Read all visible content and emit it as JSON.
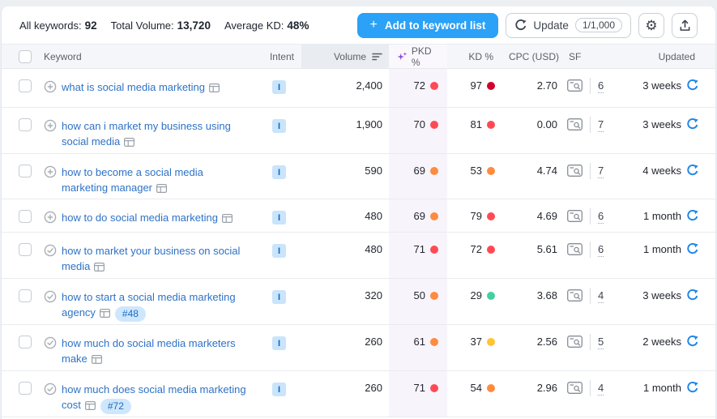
{
  "toolbar": {
    "stats": [
      {
        "label": "All keywords:",
        "value": "92"
      },
      {
        "label": "Total Volume:",
        "value": "13,720"
      },
      {
        "label": "Average KD:",
        "value": "48%"
      }
    ],
    "add_button": {
      "plus": "+",
      "label": "Add to keyword list"
    },
    "update_button": {
      "label": "Update",
      "badge": "1/1,000"
    },
    "icons": {
      "settings": "gear-icon",
      "export": "export-icon"
    }
  },
  "colors": {
    "accent_blue": "#2ba1f7",
    "link_blue": "#2e72c6",
    "refresh_blue": "#1f87e6",
    "sparkle_purple": "#8b4be0",
    "red": "#ff4a53",
    "dark_red": "#d1002f",
    "orange": "#ff8b3e",
    "yellow": "#ffc531",
    "green": "#43d0a1"
  },
  "table": {
    "columns": [
      "Keyword",
      "Intent",
      "Volume",
      "PKD %",
      "KD %",
      "CPC (USD)",
      "SF",
      "Updated"
    ],
    "rows": [
      {
        "keyword": "what is social media marketing",
        "added": false,
        "rank_badge": null,
        "intent": "I",
        "volume": "2,400",
        "pkd": {
          "value": "72",
          "color": "red"
        },
        "kd": {
          "value": "97",
          "color": "dark_red"
        },
        "cpc": "2.70",
        "sf": "6",
        "updated": "3 weeks"
      },
      {
        "keyword": "how can i market my business using social media",
        "added": false,
        "rank_badge": null,
        "intent": "I",
        "volume": "1,900",
        "pkd": {
          "value": "70",
          "color": "red"
        },
        "kd": {
          "value": "81",
          "color": "red"
        },
        "cpc": "0.00",
        "sf": "7",
        "updated": "3 weeks"
      },
      {
        "keyword": "how to become a social media marketing manager",
        "added": false,
        "rank_badge": null,
        "intent": "I",
        "volume": "590",
        "pkd": {
          "value": "69",
          "color": "orange"
        },
        "kd": {
          "value": "53",
          "color": "orange"
        },
        "cpc": "4.74",
        "sf": "7",
        "updated": "4 weeks"
      },
      {
        "keyword": "how to do social media marketing",
        "added": false,
        "rank_badge": null,
        "intent": "I",
        "volume": "480",
        "pkd": {
          "value": "69",
          "color": "orange"
        },
        "kd": {
          "value": "79",
          "color": "red"
        },
        "cpc": "4.69",
        "sf": "6",
        "updated": "1 month"
      },
      {
        "keyword": "how to market your business on social media",
        "added": true,
        "rank_badge": null,
        "intent": "I",
        "volume": "480",
        "pkd": {
          "value": "71",
          "color": "red"
        },
        "kd": {
          "value": "72",
          "color": "red"
        },
        "cpc": "5.61",
        "sf": "6",
        "updated": "1 month"
      },
      {
        "keyword": "how to start a social media marketing agency",
        "added": true,
        "rank_badge": "#48",
        "intent": "I",
        "volume": "320",
        "pkd": {
          "value": "50",
          "color": "orange"
        },
        "kd": {
          "value": "29",
          "color": "green"
        },
        "cpc": "3.68",
        "sf": "4",
        "updated": "3 weeks"
      },
      {
        "keyword": "how much do social media marketers make",
        "added": true,
        "rank_badge": null,
        "intent": "I",
        "volume": "260",
        "pkd": {
          "value": "61",
          "color": "orange"
        },
        "kd": {
          "value": "37",
          "color": "yellow"
        },
        "cpc": "2.56",
        "sf": "5",
        "updated": "2 weeks"
      },
      {
        "keyword": "how much does social media marketing cost",
        "added": true,
        "rank_badge": "#72",
        "intent": "I",
        "volume": "260",
        "pkd": {
          "value": "71",
          "color": "red"
        },
        "kd": {
          "value": "54",
          "color": "orange"
        },
        "cpc": "2.96",
        "sf": "4",
        "updated": "1 month"
      }
    ]
  }
}
